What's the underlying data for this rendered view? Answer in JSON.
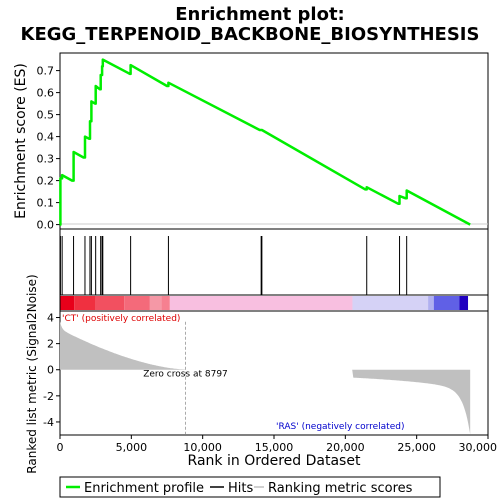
{
  "chart_data": {
    "type": "line",
    "title_lines": [
      "Enrichment plot:",
      "KEGG_TERPENOID_BACKBONE_BIOSYNTHESIS"
    ],
    "ylabel_top": "Enrichment score (ES)",
    "ylabel_bottom": "Ranked list metric (Signal2Noise)",
    "xlabel": "Rank in Ordered Dataset",
    "xlim": [
      0,
      30000
    ],
    "x_ticks": [
      0,
      5000,
      10000,
      15000,
      20000,
      25000,
      30000
    ],
    "x_tick_labels": [
      "0",
      "5,000",
      "10,000",
      "15,000",
      "20,000",
      "25,000",
      "30,000"
    ],
    "es_ylim": [
      -0.02,
      0.78
    ],
    "es_ticks": [
      0.0,
      0.1,
      0.2,
      0.3,
      0.4,
      0.5,
      0.6,
      0.7
    ],
    "es_tick_labels": [
      "0.0",
      "0.1",
      "0.2",
      "0.3",
      "0.4",
      "0.5",
      "0.6",
      "0.7"
    ],
    "metric_ylim": [
      -5,
      4.5
    ],
    "metric_ticks": [
      4,
      2,
      0,
      -2,
      -4
    ],
    "metric_tick_labels": [
      "4",
      "2",
      "0",
      "-2",
      "-4"
    ],
    "total_rank": 28750,
    "zero_cross": 8797,
    "zero_cross_label": "Zero cross at 8797",
    "pos_label": "'CT' (positively correlated)",
    "neg_label": "'RAS' (negatively correlated)",
    "hits": [
      30,
      150,
      950,
      1750,
      2100,
      2200,
      2500,
      2850,
      2950,
      3000,
      4950,
      7600,
      14100,
      14150,
      21500,
      23800,
      24300
    ],
    "es_curve": {
      "x": [
        0,
        30,
        30,
        150,
        150,
        850,
        950,
        950,
        1650,
        1750,
        1750,
        2050,
        2100,
        2100,
        2200,
        2200,
        2450,
        2500,
        2500,
        2800,
        2850,
        2850,
        2950,
        2950,
        3000,
        3000,
        4900,
        4950,
        4950,
        7500,
        7600,
        7600,
        14000,
        14100,
        14100,
        14150,
        14150,
        21400,
        21500,
        21500,
        23700,
        23800,
        23800,
        24200,
        24300,
        24300,
        28750
      ],
      "y": [
        0.0,
        0.0,
        0.21,
        0.21,
        0.225,
        0.2,
        0.2,
        0.33,
        0.305,
        0.305,
        0.4,
        0.39,
        0.39,
        0.47,
        0.47,
        0.56,
        0.55,
        0.55,
        0.63,
        0.615,
        0.615,
        0.68,
        0.68,
        0.72,
        0.72,
        0.75,
        0.685,
        0.685,
        0.725,
        0.63,
        0.63,
        0.645,
        0.43,
        0.43,
        0.43,
        0.43,
        0.43,
        0.16,
        0.16,
        0.17,
        0.095,
        0.095,
        0.13,
        0.12,
        0.12,
        0.155,
        0.0
      ]
    },
    "colors": {
      "es_line": "#00ee00",
      "hit": "#000000",
      "metric_fill": "#c0c0c0",
      "pos_text": "#dd0000",
      "neg_text": "#0000cc",
      "zero_line": "#aaaaaa"
    },
    "heat_segments": [
      {
        "from": 0,
        "to": 1000,
        "color": "#e8001a"
      },
      {
        "from": 1000,
        "to": 2500,
        "color": "#f03040"
      },
      {
        "from": 2500,
        "to": 4500,
        "color": "#f25060"
      },
      {
        "from": 4500,
        "to": 6300,
        "color": "#f46a7a"
      },
      {
        "from": 6300,
        "to": 7100,
        "color": "#f598a6"
      },
      {
        "from": 7100,
        "to": 7700,
        "color": "#f68090"
      },
      {
        "from": 7700,
        "to": 20500,
        "color": "#f8bfe0"
      },
      {
        "from": 20500,
        "to": 25800,
        "color": "#d5d2f6"
      },
      {
        "from": 25800,
        "to": 26200,
        "color": "#b0b0f0"
      },
      {
        "from": 26200,
        "to": 28000,
        "color": "#6060e6"
      },
      {
        "from": 28000,
        "to": 28600,
        "color": "#2000c0"
      }
    ],
    "legend": [
      {
        "label": "Enrichment profile",
        "kind": "es"
      },
      {
        "label": "Hits",
        "kind": "hit"
      },
      {
        "label": "Ranking metric scores",
        "kind": "metric"
      }
    ]
  }
}
